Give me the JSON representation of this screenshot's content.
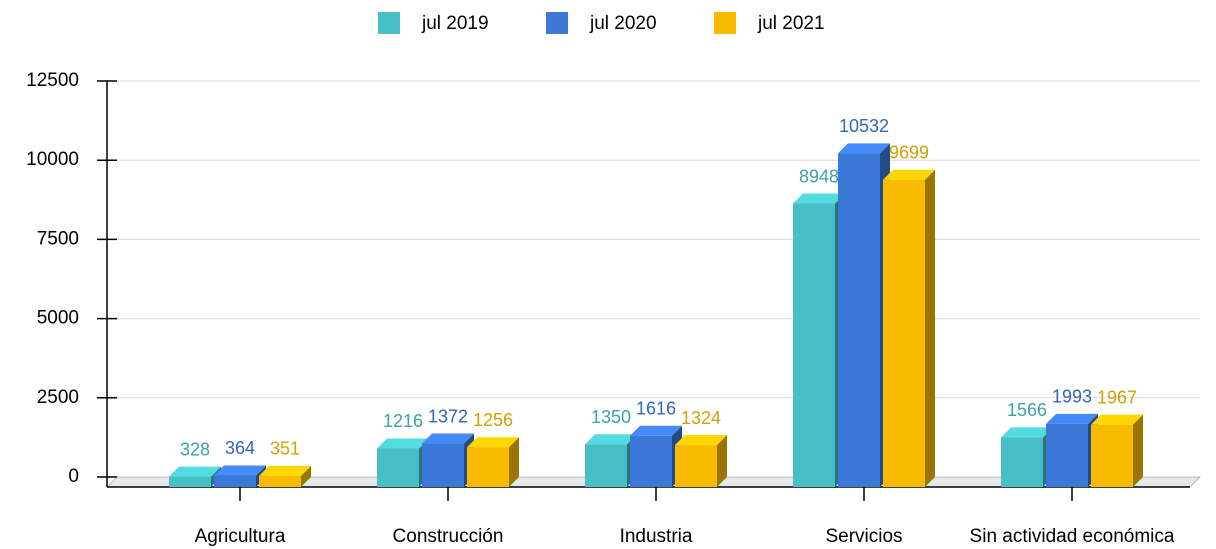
{
  "chart_data": {
    "type": "bar",
    "categories": [
      "Agricultura",
      "Construcción",
      "Industria",
      "Servicios",
      "Sin actividad económica"
    ],
    "series": [
      {
        "name": "jul 2019",
        "color": "#47bfc4",
        "values": [
          328,
          1216,
          1350,
          8948,
          1566
        ]
      },
      {
        "name": "jul 2020",
        "color": "#3b78d8",
        "values": [
          364,
          1372,
          1616,
          10532,
          1993
        ]
      },
      {
        "name": "jul 2021",
        "color": "#f9bb00",
        "values": [
          351,
          1256,
          1324,
          9699,
          1967
        ]
      }
    ],
    "ylim": [
      0,
      12500
    ],
    "yticks": [
      0,
      2500,
      5000,
      7500,
      10000,
      12500
    ],
    "grid": true,
    "legend": "top"
  }
}
